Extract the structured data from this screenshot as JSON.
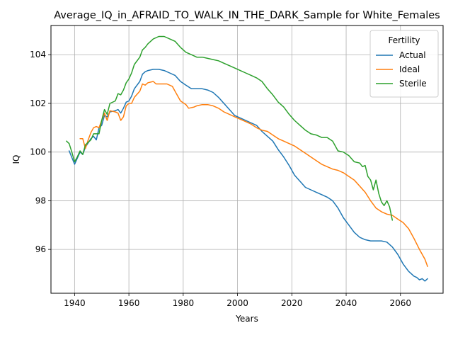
{
  "chart_data": {
    "type": "line",
    "title": "Average_IQ_in_AFRAID_TO_WALK_IN_THE_DARK_Sample for White_Females",
    "xlabel": "Years",
    "ylabel": "IQ",
    "xlim": [
      1931.3,
      2075.7
    ],
    "ylim": [
      94.2,
      105.2
    ],
    "xticks": [
      1940,
      1960,
      1980,
      2000,
      2020,
      2040,
      2060
    ],
    "yticks": [
      96,
      98,
      100,
      102,
      104
    ],
    "grid": true,
    "legend": {
      "title": "Fertility",
      "position": "top-right"
    },
    "series": [
      {
        "name": "Actual",
        "color": "#1f77b4",
        "points": [
          [
            1938,
            100.05
          ],
          [
            1940,
            99.5
          ],
          [
            1942,
            100.0
          ],
          [
            1943,
            99.9
          ],
          [
            1944,
            100.2
          ],
          [
            1946,
            100.55
          ],
          [
            1947,
            100.65
          ],
          [
            1948,
            100.5
          ],
          [
            1949,
            101.0
          ],
          [
            1950,
            101.1
          ],
          [
            1951,
            101.5
          ],
          [
            1952,
            101.45
          ],
          [
            1953,
            101.65
          ],
          [
            1955,
            101.7
          ],
          [
            1956,
            101.75
          ],
          [
            1957,
            101.6
          ],
          [
            1958,
            101.8
          ],
          [
            1959,
            102.05
          ],
          [
            1960,
            102.1
          ],
          [
            1961,
            102.3
          ],
          [
            1962,
            102.6
          ],
          [
            1964,
            102.9
          ],
          [
            1965,
            103.2
          ],
          [
            1966,
            103.3
          ],
          [
            1967,
            103.35
          ],
          [
            1969,
            103.4
          ],
          [
            1971,
            103.4
          ],
          [
            1973,
            103.35
          ],
          [
            1975,
            103.25
          ],
          [
            1977,
            103.15
          ],
          [
            1979,
            102.9
          ],
          [
            1981,
            102.75
          ],
          [
            1983,
            102.6
          ],
          [
            1985,
            102.6
          ],
          [
            1987,
            102.6
          ],
          [
            1989,
            102.55
          ],
          [
            1991,
            102.45
          ],
          [
            1993,
            102.25
          ],
          [
            1995,
            102.0
          ],
          [
            1997,
            101.75
          ],
          [
            1999,
            101.5
          ],
          [
            2001,
            101.4
          ],
          [
            2003,
            101.3
          ],
          [
            2005,
            101.2
          ],
          [
            2007,
            101.1
          ],
          [
            2009,
            100.85
          ],
          [
            2011,
            100.65
          ],
          [
            2013,
            100.45
          ],
          [
            2015,
            100.1
          ],
          [
            2017,
            99.8
          ],
          [
            2019,
            99.45
          ],
          [
            2021,
            99.05
          ],
          [
            2023,
            98.8
          ],
          [
            2025,
            98.55
          ],
          [
            2027,
            98.45
          ],
          [
            2029,
            98.35
          ],
          [
            2031,
            98.25
          ],
          [
            2033,
            98.15
          ],
          [
            2035,
            98.0
          ],
          [
            2037,
            97.7
          ],
          [
            2039,
            97.3
          ],
          [
            2041,
            97.0
          ],
          [
            2043,
            96.7
          ],
          [
            2045,
            96.5
          ],
          [
            2047,
            96.4
          ],
          [
            2049,
            96.35
          ],
          [
            2051,
            96.35
          ],
          [
            2053,
            96.35
          ],
          [
            2055,
            96.3
          ],
          [
            2057,
            96.1
          ],
          [
            2059,
            95.8
          ],
          [
            2061,
            95.4
          ],
          [
            2063,
            95.1
          ],
          [
            2065,
            94.9
          ],
          [
            2066,
            94.85
          ],
          [
            2067,
            94.75
          ],
          [
            2068,
            94.8
          ],
          [
            2069,
            94.7
          ],
          [
            2070,
            94.8
          ]
        ]
      },
      {
        "name": "Ideal",
        "color": "#ff7f0e",
        "points": [
          [
            1942,
            100.55
          ],
          [
            1943,
            100.55
          ],
          [
            1944,
            100.15
          ],
          [
            1945,
            100.5
          ],
          [
            1946,
            100.8
          ],
          [
            1947,
            101.0
          ],
          [
            1948,
            101.05
          ],
          [
            1949,
            101.0
          ],
          [
            1950,
            101.3
          ],
          [
            1951,
            101.6
          ],
          [
            1952,
            101.3
          ],
          [
            1953,
            101.7
          ],
          [
            1955,
            101.65
          ],
          [
            1956,
            101.6
          ],
          [
            1957,
            101.3
          ],
          [
            1958,
            101.45
          ],
          [
            1959,
            101.9
          ],
          [
            1960,
            102.0
          ],
          [
            1961,
            102.0
          ],
          [
            1962,
            102.25
          ],
          [
            1964,
            102.5
          ],
          [
            1965,
            102.8
          ],
          [
            1966,
            102.75
          ],
          [
            1967,
            102.85
          ],
          [
            1969,
            102.9
          ],
          [
            1970,
            102.8
          ],
          [
            1972,
            102.8
          ],
          [
            1974,
            102.8
          ],
          [
            1976,
            102.7
          ],
          [
            1977,
            102.5
          ],
          [
            1978,
            102.3
          ],
          [
            1979,
            102.1
          ],
          [
            1981,
            101.95
          ],
          [
            1982,
            101.8
          ],
          [
            1984,
            101.85
          ],
          [
            1985,
            101.9
          ],
          [
            1987,
            101.95
          ],
          [
            1989,
            101.95
          ],
          [
            1991,
            101.9
          ],
          [
            1993,
            101.8
          ],
          [
            1995,
            101.65
          ],
          [
            1997,
            101.55
          ],
          [
            1999,
            101.45
          ],
          [
            2001,
            101.35
          ],
          [
            2003,
            101.25
          ],
          [
            2005,
            101.15
          ],
          [
            2007,
            101.0
          ],
          [
            2009,
            100.9
          ],
          [
            2011,
            100.85
          ],
          [
            2013,
            100.7
          ],
          [
            2015,
            100.55
          ],
          [
            2017,
            100.45
          ],
          [
            2019,
            100.35
          ],
          [
            2021,
            100.25
          ],
          [
            2023,
            100.1
          ],
          [
            2025,
            99.95
          ],
          [
            2027,
            99.8
          ],
          [
            2029,
            99.65
          ],
          [
            2031,
            99.5
          ],
          [
            2033,
            99.4
          ],
          [
            2035,
            99.3
          ],
          [
            2037,
            99.25
          ],
          [
            2039,
            99.15
          ],
          [
            2041,
            99.0
          ],
          [
            2043,
            98.85
          ],
          [
            2045,
            98.6
          ],
          [
            2047,
            98.35
          ],
          [
            2049,
            98.0
          ],
          [
            2051,
            97.7
          ],
          [
            2053,
            97.55
          ],
          [
            2055,
            97.45
          ],
          [
            2057,
            97.4
          ],
          [
            2059,
            97.25
          ],
          [
            2061,
            97.1
          ],
          [
            2063,
            96.85
          ],
          [
            2065,
            96.45
          ],
          [
            2067,
            96.0
          ],
          [
            2069,
            95.6
          ],
          [
            2070,
            95.3
          ]
        ]
      },
      {
        "name": "Sterile",
        "color": "#2ca02c",
        "points": [
          [
            1937,
            100.45
          ],
          [
            1938,
            100.35
          ],
          [
            1939,
            100.0
          ],
          [
            1940,
            99.6
          ],
          [
            1941,
            99.8
          ],
          [
            1942,
            100.05
          ],
          [
            1943,
            99.9
          ],
          [
            1944,
            100.3
          ],
          [
            1946,
            100.5
          ],
          [
            1947,
            100.75
          ],
          [
            1949,
            100.75
          ],
          [
            1950,
            101.3
          ],
          [
            1951,
            101.75
          ],
          [
            1952,
            101.55
          ],
          [
            1953,
            102.0
          ],
          [
            1955,
            102.1
          ],
          [
            1956,
            102.4
          ],
          [
            1957,
            102.35
          ],
          [
            1958,
            102.55
          ],
          [
            1959,
            102.85
          ],
          [
            1960,
            103.0
          ],
          [
            1961,
            103.25
          ],
          [
            1962,
            103.6
          ],
          [
            1964,
            103.9
          ],
          [
            1965,
            104.2
          ],
          [
            1966,
            104.3
          ],
          [
            1967,
            104.45
          ],
          [
            1969,
            104.65
          ],
          [
            1971,
            104.75
          ],
          [
            1973,
            104.75
          ],
          [
            1975,
            104.65
          ],
          [
            1977,
            104.55
          ],
          [
            1979,
            104.3
          ],
          [
            1981,
            104.1
          ],
          [
            1983,
            104.0
          ],
          [
            1985,
            103.9
          ],
          [
            1987,
            103.9
          ],
          [
            1989,
            103.85
          ],
          [
            1991,
            103.8
          ],
          [
            1993,
            103.75
          ],
          [
            1995,
            103.65
          ],
          [
            1997,
            103.55
          ],
          [
            1999,
            103.45
          ],
          [
            2001,
            103.35
          ],
          [
            2003,
            103.25
          ],
          [
            2005,
            103.15
          ],
          [
            2007,
            103.05
          ],
          [
            2009,
            102.9
          ],
          [
            2011,
            102.6
          ],
          [
            2013,
            102.35
          ],
          [
            2015,
            102.05
          ],
          [
            2017,
            101.85
          ],
          [
            2019,
            101.55
          ],
          [
            2021,
            101.3
          ],
          [
            2023,
            101.1
          ],
          [
            2025,
            100.9
          ],
          [
            2027,
            100.75
          ],
          [
            2029,
            100.7
          ],
          [
            2031,
            100.6
          ],
          [
            2033,
            100.6
          ],
          [
            2035,
            100.45
          ],
          [
            2037,
            100.05
          ],
          [
            2039,
            100.0
          ],
          [
            2041,
            99.85
          ],
          [
            2043,
            99.6
          ],
          [
            2045,
            99.55
          ],
          [
            2046,
            99.4
          ],
          [
            2047,
            99.45
          ],
          [
            2048,
            99.0
          ],
          [
            2049,
            98.85
          ],
          [
            2050,
            98.45
          ],
          [
            2051,
            98.85
          ],
          [
            2052,
            98.3
          ],
          [
            2053,
            97.95
          ],
          [
            2054,
            97.8
          ],
          [
            2055,
            98.0
          ],
          [
            2056,
            97.75
          ],
          [
            2057,
            97.2
          ]
        ]
      }
    ]
  }
}
